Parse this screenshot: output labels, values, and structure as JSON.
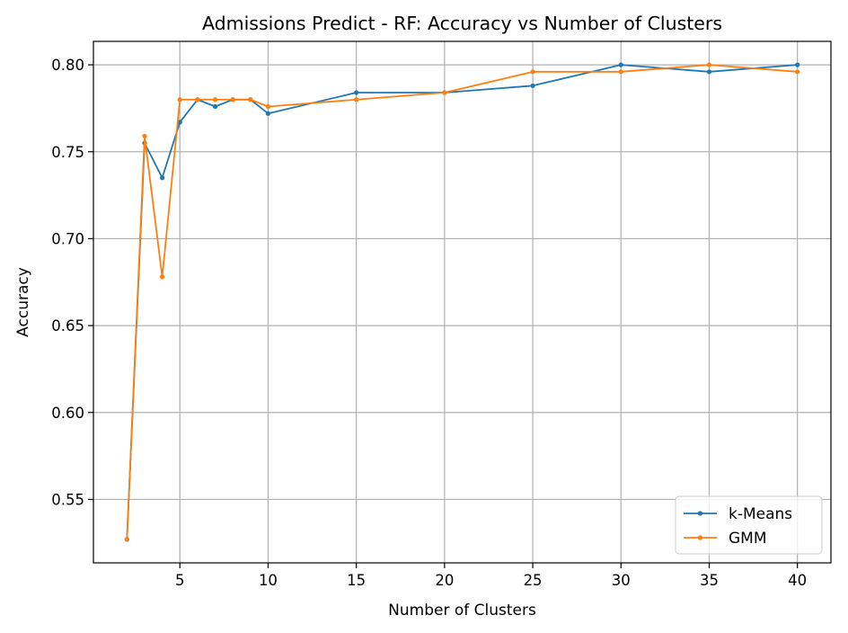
{
  "chart_data": {
    "type": "line",
    "title": "Admissions Predict - RF: Accuracy vs Number of Clusters",
    "xlabel": "Number of Clusters",
    "ylabel": "Accuracy",
    "xlim": [
      0.1,
      41.9
    ],
    "ylim": [
      0.5135,
      0.8135
    ],
    "xticks": [
      5,
      10,
      15,
      20,
      25,
      30,
      35,
      40
    ],
    "xtick_labels": [
      "5",
      "10",
      "15",
      "20",
      "25",
      "30",
      "35",
      "40"
    ],
    "yticks": [
      0.55,
      0.6,
      0.65,
      0.7,
      0.75,
      0.8
    ],
    "ytick_labels": [
      "0.55",
      "0.60",
      "0.65",
      "0.70",
      "0.75",
      "0.80"
    ],
    "grid": true,
    "legend_position": "lower-right",
    "series": [
      {
        "name": "k-Means",
        "color": "#1f77b4",
        "x": [
          2,
          3,
          4,
          5,
          6,
          7,
          8,
          9,
          10,
          15,
          20,
          25,
          30,
          35,
          40
        ],
        "y": [
          0.527,
          0.755,
          0.735,
          0.767,
          0.78,
          0.776,
          0.78,
          0.78,
          0.772,
          0.784,
          0.784,
          0.788,
          0.8,
          0.796,
          0.8
        ]
      },
      {
        "name": "GMM",
        "color": "#ff7f0e",
        "x": [
          2,
          3,
          4,
          5,
          6,
          7,
          8,
          9,
          10,
          15,
          20,
          25,
          30,
          35,
          40
        ],
        "y": [
          0.527,
          0.759,
          0.678,
          0.78,
          0.78,
          0.78,
          0.78,
          0.78,
          0.776,
          0.78,
          0.784,
          0.796,
          0.796,
          0.8,
          0.796
        ]
      }
    ]
  }
}
